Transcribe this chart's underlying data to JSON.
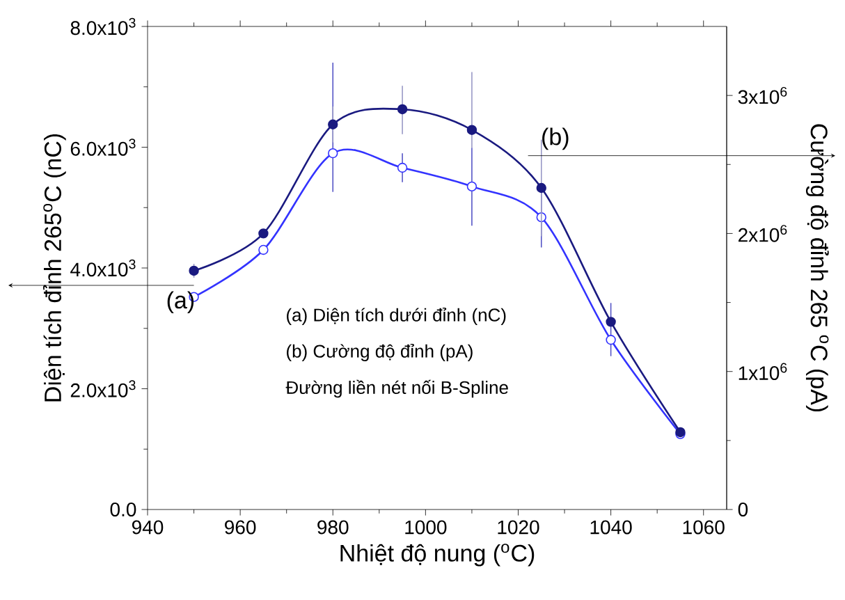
{
  "chart_data": {
    "type": "line",
    "xlabel": "Nhiệt độ nung ($^{o}$C)",
    "ylabel": "Diện tích đỉnh 265$^{o}$C (nC)",
    "y2label": "Cường độ đỉnh 265 $^{o}$C (pA)",
    "x": [
      950,
      965,
      980,
      995,
      1010,
      1025,
      1040,
      1055
    ],
    "series": [
      {
        "color": "#3333ff",
        "marker": "circle",
        "values": [
          3520,
          4300,
          5900,
          5660,
          5350,
          4840,
          2810,
          1250
        ],
        "errors": [
          null,
          null,
          [
            5260,
            7400
          ],
          [
            5420,
            5900
          ],
          [
            4700,
            5990
          ],
          500,
          [
            2540,
            3420
          ],
          null
        ]
      },
      {
        "color": "#1a1a80",
        "marker": "circle",
        "axis": "y2",
        "values": [
          1730000,
          2000000,
          2790000,
          2900000,
          2750000,
          2330000,
          1360000,
          560000
        ],
        "errors": [
          50000,
          null,
          130000,
          [
            2720000,
            3070000
          ],
          [
            2620000,
            3170000
          ],
          [
            1980000,
            2680000
          ],
          null,
          null
        ]
      }
    ],
    "xlim": [
      940,
      1065
    ],
    "xticks": [
      940,
      960,
      980,
      1000,
      1020,
      1040,
      1060
    ],
    "ylim": [
      0,
      8000
    ],
    "yticks": [
      {
        "value": 0,
        "label": "0.0"
      },
      {
        "value": 2000,
        "label": "2.0x10$^{3}$"
      },
      {
        "value": 4000,
        "label": "4.0x10$^{3}$"
      },
      {
        "value": 6000,
        "label": "6.0x10$^{3}$"
      },
      {
        "value": 8000,
        "label": "8.0x10$^{3}$"
      }
    ],
    "y2lim": [
      0,
      3500000
    ],
    "y2ticks": [
      0,
      {
        "value": 1000000,
        "label": "1x10$^{6}$"
      },
      {
        "value": 2000000,
        "label": "2x10$^{6}$"
      },
      {
        "value": 3000000,
        "label": "3x10$^{6}$"
      }
    ],
    "annotations": [
      "(a)",
      "(b)",
      "(a) Diện tích dưới đỉnh (nC)",
      "(b) Cường độ đỉnh (pA)",
      "Đường liền nét nối B-Spline"
    ]
  }
}
